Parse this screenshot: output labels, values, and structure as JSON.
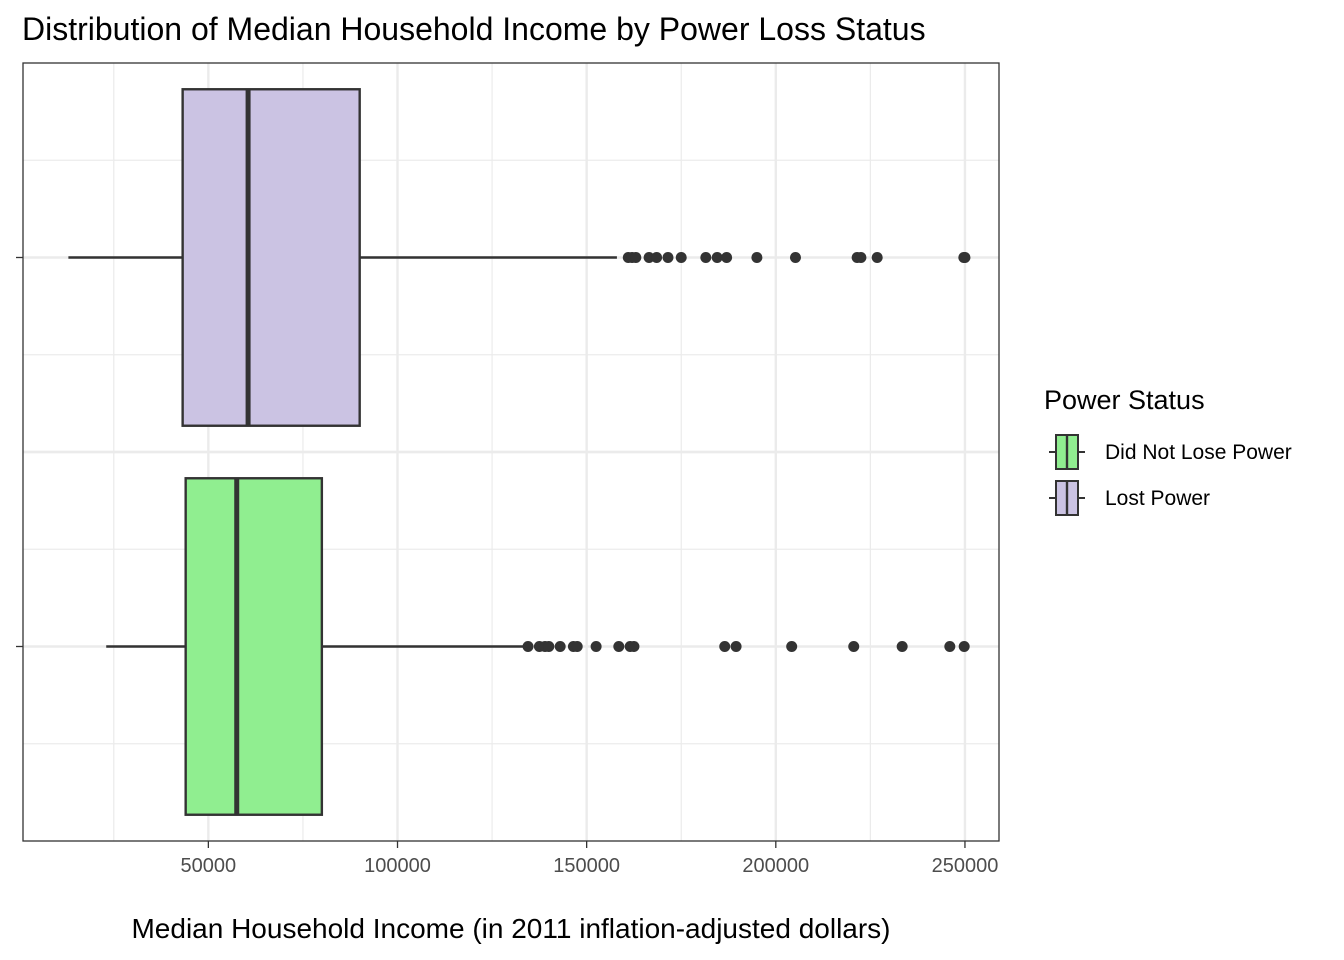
{
  "chart_data": {
    "type": "boxplot",
    "orientation": "horizontal",
    "title": "Distribution of Median Household Income by Power Loss Status",
    "xlabel": "Median Household Income (in 2011 inflation-adjusted dollars)",
    "ylabel": "",
    "xlim": [
      1000,
      259000
    ],
    "xticks": [
      50000,
      100000,
      150000,
      200000,
      250000
    ],
    "xtick_labels": [
      "50000",
      "100000",
      "150000",
      "200000",
      "250000"
    ],
    "grid": true,
    "legend": {
      "title": "Power Status",
      "position": "right",
      "entries": [
        "Did Not Lose Power",
        "Lost Power"
      ]
    },
    "series": [
      {
        "name": "Did Not Lose Power",
        "color": "#90EE90",
        "whisker_low": 23000,
        "q1": 44000,
        "median": 57500,
        "q3": 80000,
        "whisker_high": 134000,
        "outliers": [
          134500,
          137500,
          139000,
          140000,
          143000,
          146500,
          147500,
          152500,
          158500,
          161500,
          162500,
          186500,
          189500,
          204200,
          220600,
          233400,
          246000,
          249800
        ]
      },
      {
        "name": "Lost Power",
        "color": "#CBC3E3",
        "whisker_low": 13000,
        "q1": 43200,
        "median": 60500,
        "q3": 90000,
        "whisker_high": 158000,
        "outliers": [
          161000,
          162000,
          163000,
          166500,
          168500,
          171500,
          175000,
          181500,
          184500,
          187000,
          195000,
          205200,
          221500,
          222500,
          226800,
          249700,
          250000
        ]
      }
    ]
  }
}
